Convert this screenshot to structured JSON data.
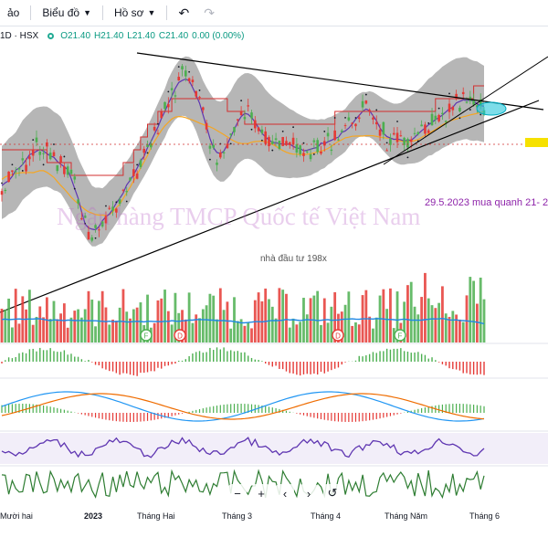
{
  "toolbar": {
    "items": [
      {
        "label": "ảo",
        "has_caret": false
      },
      {
        "label": "Biểu đồ",
        "has_caret": true
      },
      {
        "label": "Hồ sơ",
        "has_caret": true
      }
    ],
    "icons": [
      "undo-icon",
      "redo-icon"
    ]
  },
  "legend": {
    "symbol": "1D · HSX",
    "open": "O21.40",
    "high": "H21.40",
    "low": "L21.40",
    "close": "C21.40",
    "change": "0.00 (0.00%)",
    "color": "#089981"
  },
  "watermark": "Ngân hàng TMCP Quốc tế Việt Nam",
  "annotation": "29.5.2023 mua quanh 21- 2",
  "subnote": "nhà đầu tư 198x",
  "event_markers": [
    "F",
    "D",
    "D",
    "F"
  ],
  "x_axis": [
    "Mười hai",
    "2023",
    "Tháng Hai",
    "Tháng 3",
    "Tháng 4",
    "Tháng Năm",
    "Tháng 6"
  ],
  "nav": [
    "−",
    "+",
    "‹",
    "›",
    "↺"
  ],
  "colors": {
    "up": "#4caf50",
    "down": "#e53935",
    "band": "#9e9e9e",
    "ma_purple": "#5e35b1",
    "ma_orange": "#f5a623",
    "ma_red": "#d32f2f",
    "volume_ma": "#1e88e5",
    "macd_blue": "#2196f3",
    "macd_orange": "#ef6c00",
    "rsi": "#5e35b1",
    "osc": "#2e7d32",
    "watermark": "#ba68c8",
    "price_tag": "#f6e100"
  }
}
